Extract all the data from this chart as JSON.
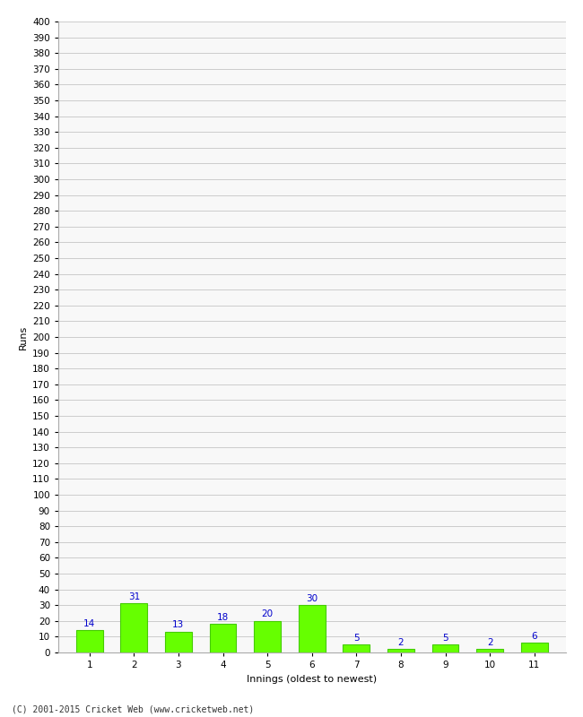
{
  "innings": [
    1,
    2,
    3,
    4,
    5,
    6,
    7,
    8,
    9,
    10,
    11
  ],
  "runs": [
    14,
    31,
    13,
    18,
    20,
    30,
    5,
    2,
    5,
    2,
    6
  ],
  "bar_color": "#66ff00",
  "bar_edge_color": "#44cc00",
  "label_color": "#0000cc",
  "ylabel": "Runs",
  "xlabel": "Innings (oldest to newest)",
  "footer": "(C) 2001-2015 Cricket Web (www.cricketweb.net)",
  "ylim_min": 0,
  "ylim_max": 400,
  "ytick_step": 10,
  "background_color": "#ffffff",
  "plot_bg_color": "#f8f8f8",
  "grid_color": "#cccccc",
  "label_fontsize": 7.5,
  "axis_label_fontsize": 8,
  "tick_fontsize": 7.5
}
